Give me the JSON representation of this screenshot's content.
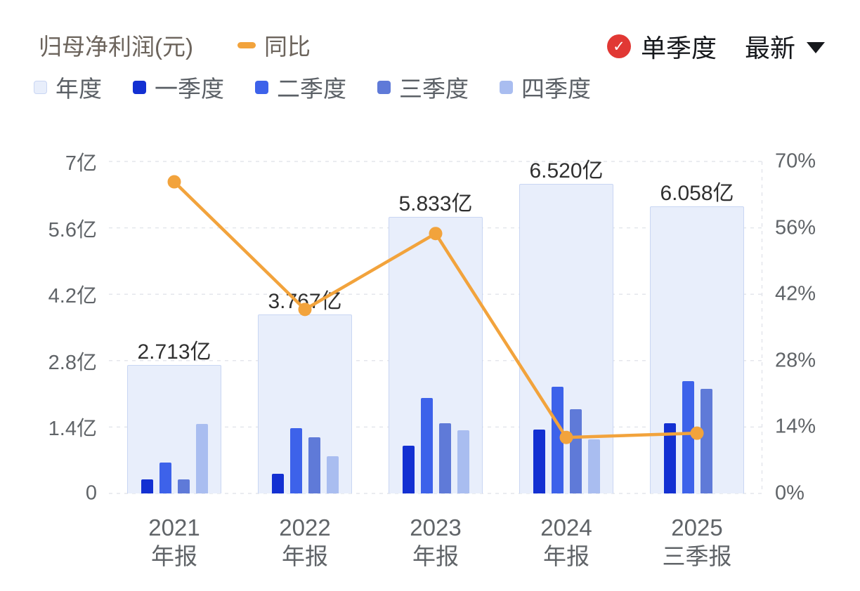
{
  "header": {
    "title": "归母净利润(元)",
    "yoy_legend": "同比",
    "quarter_toggle": "单季度",
    "latest_label": "最新"
  },
  "legend": {
    "items": [
      {
        "label": "年度",
        "color": "#e8eefb",
        "border": "#c9d6f3"
      },
      {
        "label": "一季度",
        "color": "#1330d2"
      },
      {
        "label": "二季度",
        "color": "#3d62ea"
      },
      {
        "label": "三季度",
        "color": "#5f7ad8"
      },
      {
        "label": "四季度",
        "color": "#a9bdf0"
      }
    ]
  },
  "chart_data": {
    "type": "bar+line",
    "title": "归母净利润(元)",
    "categories": [
      {
        "year": "2021",
        "period": "年报"
      },
      {
        "year": "2022",
        "period": "年报"
      },
      {
        "year": "2023",
        "period": "年报"
      },
      {
        "year": "2024",
        "period": "年报"
      },
      {
        "year": "2025",
        "period": "三季报"
      }
    ],
    "annual": {
      "name": "年度",
      "values": [
        2.713,
        3.767,
        5.833,
        6.52,
        6.058
      ],
      "labels": [
        "2.713亿",
        "3.767亿",
        "5.833亿",
        "6.520亿",
        "6.058亿"
      ]
    },
    "quarters": {
      "series": [
        {
          "name": "一季度",
          "values": [
            0.3,
            0.42,
            1.0,
            1.35,
            1.48
          ]
        },
        {
          "name": "二季度",
          "values": [
            0.65,
            1.38,
            2.02,
            2.25,
            2.37
          ]
        },
        {
          "name": "三季度",
          "values": [
            0.3,
            1.19,
            1.48,
            1.78,
            2.21
          ]
        },
        {
          "name": "四季度",
          "values": [
            1.46,
            0.78,
            1.33,
            1.14,
            null
          ]
        }
      ]
    },
    "yoy": {
      "name": "同比",
      "values": [
        65.7,
        38.8,
        54.8,
        11.8,
        12.7
      ],
      "unit": "%"
    },
    "left_axis": {
      "ticks": [
        "0",
        "1.4亿",
        "2.8亿",
        "4.2亿",
        "5.6亿",
        "7亿"
      ],
      "min": 0,
      "max": 7
    },
    "right_axis": {
      "ticks": [
        "0%",
        "14%",
        "28%",
        "42%",
        "56%",
        "70%"
      ],
      "min": 0,
      "max": 70
    },
    "grid": "dashed-horizontal",
    "annual_color": "#e8eefb",
    "annual_border": "#c9d6f3",
    "series_colors": [
      "#1330d2",
      "#3d62ea",
      "#5f7ad8",
      "#a9bdf0"
    ],
    "line_color": "#f2a33c"
  }
}
